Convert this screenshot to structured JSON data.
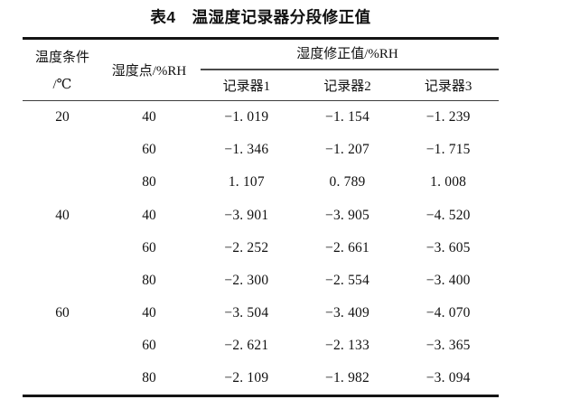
{
  "title": "表4　温湿度记录器分段修正值",
  "colors": {
    "background": "#ffffff",
    "text": "#111111",
    "rule_heavy": "#141414",
    "rule_light": "#4a4a4a"
  },
  "table": {
    "header": {
      "temp_condition_line1": "温度条件",
      "temp_condition_line2": "/℃",
      "humidity_point": "湿度点/%RH",
      "correction_group": "湿度修正值/%RH",
      "recorder1": "记录器1",
      "recorder2": "记录器2",
      "recorder3": "记录器3"
    },
    "groups": [
      {
        "temperature": "20",
        "rows": [
          {
            "humidity": "40",
            "values": [
              "−1. 019",
              "−1. 154",
              "−1. 239"
            ]
          },
          {
            "humidity": "60",
            "values": [
              "−1. 346",
              "−1. 207",
              "−1. 715"
            ]
          },
          {
            "humidity": "80",
            "values": [
              "1. 107",
              "0. 789",
              "1. 008"
            ]
          }
        ]
      },
      {
        "temperature": "40",
        "rows": [
          {
            "humidity": "40",
            "values": [
              "−3. 901",
              "−3. 905",
              "−4. 520"
            ]
          },
          {
            "humidity": "60",
            "values": [
              "−2. 252",
              "−2. 661",
              "−3. 605"
            ]
          },
          {
            "humidity": "80",
            "values": [
              "−2. 300",
              "−2. 554",
              "−3. 400"
            ]
          }
        ]
      },
      {
        "temperature": "60",
        "rows": [
          {
            "humidity": "40",
            "values": [
              "−3. 504",
              "−3. 409",
              "−4. 070"
            ]
          },
          {
            "humidity": "60",
            "values": [
              "−2. 621",
              "−2. 133",
              "−3. 365"
            ]
          },
          {
            "humidity": "80",
            "values": [
              "−2. 109",
              "−1. 982",
              "−3. 094"
            ]
          }
        ]
      }
    ]
  }
}
